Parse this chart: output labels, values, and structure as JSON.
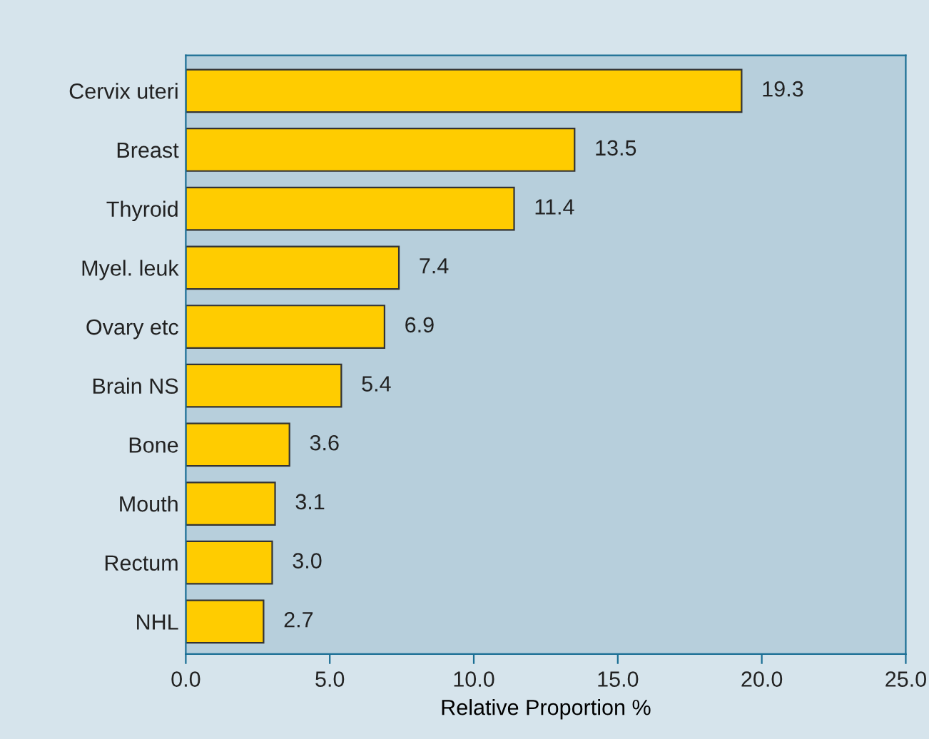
{
  "chart_data": {
    "type": "bar",
    "orientation": "horizontal",
    "xlabel": "Relative Proportion %",
    "categories": [
      "Cervix uteri",
      "Breast",
      "Thyroid",
      "Myel. leuk",
      "Ovary etc",
      "Brain NS",
      "Bone",
      "Mouth",
      "Rectum",
      "NHL"
    ],
    "values": [
      19.3,
      13.5,
      11.4,
      7.4,
      6.9,
      5.4,
      3.6,
      3.1,
      3.0,
      2.7
    ],
    "value_labels": [
      "19.3",
      "13.5",
      "11.4",
      "7.4",
      "6.9",
      "5.4",
      "3.6",
      "3.1",
      "3.0",
      "2.7"
    ],
    "color": "#ffcc00",
    "grid": false,
    "xlim": [
      0,
      25
    ],
    "xticks": [
      {
        "value": 0,
        "label": "0.0"
      },
      {
        "value": 5,
        "label": "5.0"
      },
      {
        "value": 10,
        "label": "10.0"
      },
      {
        "value": 15,
        "label": "15.0"
      },
      {
        "value": 20,
        "label": "20.0"
      },
      {
        "value": 25,
        "label": "25.0"
      }
    ]
  }
}
